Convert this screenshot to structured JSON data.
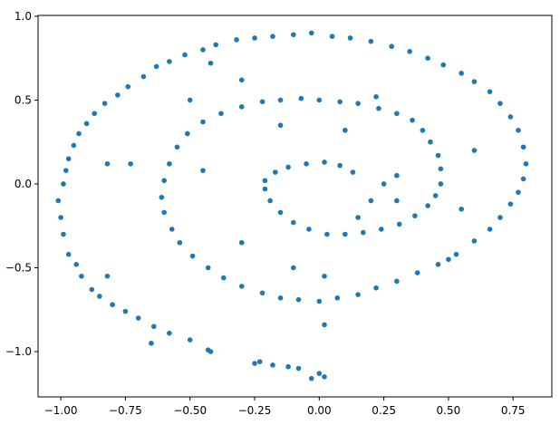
{
  "chart_data": {
    "type": "scatter",
    "x": [
      0.02,
      -0.03,
      0,
      -0.08,
      -0.12,
      -0.18,
      -0.25,
      -0.23,
      -0.43,
      -0.5,
      -0.58,
      -0.64,
      -0.7,
      -0.75,
      -0.8,
      -0.85,
      -0.88,
      -0.92,
      -0.94,
      -0.97,
      -0.99,
      -1.0,
      -1.01,
      -0.99,
      -0.98,
      -0.97,
      -0.95,
      -0.93,
      -0.9,
      -0.87,
      -0.83,
      -0.78,
      -0.74,
      -0.68,
      -0.63,
      -0.58,
      -0.52,
      -0.45,
      -0.4,
      -0.32,
      -0.25,
      -0.18,
      -0.1,
      -0.03,
      0.05,
      0.12,
      0.2,
      0.28,
      0.35,
      0.42,
      0.48,
      0.55,
      0.6,
      0.66,
      0.7,
      0.74,
      0.77,
      0.79,
      0.8,
      0.79,
      0.77,
      0.74,
      0.7,
      0.66,
      0.6,
      0.53,
      0.46,
      0.38,
      0.3,
      0.22,
      0.15,
      0.07,
      0,
      -0.08,
      -0.15,
      -0.22,
      -0.3,
      -0.37,
      -0.43,
      -0.49,
      -0.54,
      -0.57,
      -0.6,
      -0.61,
      -0.6,
      -0.58,
      -0.55,
      -0.51,
      -0.45,
      -0.38,
      -0.3,
      -0.22,
      -0.15,
      -0.07,
      0,
      0.08,
      0.15,
      0.23,
      0.3,
      0.36,
      0.4,
      0.43,
      0.46,
      0.47,
      0.47,
      0.45,
      0.42,
      0.37,
      0.31,
      0.24,
      0.17,
      0.1,
      0.03,
      -0.04,
      -0.1,
      -0.15,
      -0.19,
      -0.21,
      -0.21,
      -0.17,
      -0.12,
      -0.05,
      0.02,
      0.08,
      0.13,
      -0.42,
      0.02,
      -0.65,
      -0.73,
      -0.82,
      -0.3,
      -0.42,
      0.22,
      0.6,
      0.2,
      0.15,
      0.3,
      -0.1,
      -0.3,
      0.55,
      0.5,
      -0.15,
      0.1,
      0.3,
      0.25,
      -0.45,
      -0.5,
      -0.82,
      0.02
    ],
    "values": [
      -1.15,
      -1.16,
      -1.13,
      -1.1,
      -1.09,
      -1.08,
      -1.07,
      -1.06,
      -0.99,
      -0.93,
      -0.89,
      -0.85,
      -0.8,
      -0.76,
      -0.72,
      -0.67,
      -0.63,
      -0.55,
      -0.48,
      -0.42,
      -0.3,
      -0.2,
      -0.1,
      0,
      0.08,
      0.15,
      0.23,
      0.3,
      0.36,
      0.42,
      0.48,
      0.53,
      0.58,
      0.64,
      0.7,
      0.73,
      0.77,
      0.8,
      0.83,
      0.86,
      0.87,
      0.88,
      0.89,
      0.9,
      0.88,
      0.87,
      0.85,
      0.82,
      0.79,
      0.75,
      0.71,
      0.66,
      0.61,
      0.55,
      0.48,
      0.4,
      0.32,
      0.22,
      0.12,
      0.03,
      -0.05,
      -0.12,
      -0.2,
      -0.27,
      -0.34,
      -0.42,
      -0.48,
      -0.53,
      -0.58,
      -0.62,
      -0.66,
      -0.68,
      -0.7,
      -0.69,
      -0.68,
      -0.65,
      -0.61,
      -0.56,
      -0.5,
      -0.43,
      -0.35,
      -0.27,
      -0.17,
      -0.08,
      0.02,
      0.12,
      0.22,
      0.3,
      0.37,
      0.42,
      0.46,
      0.49,
      0.5,
      0.51,
      0.5,
      0.49,
      0.48,
      0.45,
      0.42,
      0.38,
      0.32,
      0.25,
      0.17,
      0.09,
      0,
      -0.07,
      -0.13,
      -0.19,
      -0.24,
      -0.27,
      -0.29,
      -0.3,
      -0.3,
      -0.27,
      -0.23,
      -0.17,
      -0.1,
      -0.03,
      0.02,
      0.07,
      0.1,
      0.12,
      0.13,
      0.11,
      0.07,
      -1.0,
      -0.84,
      -0.95,
      0.12,
      0.12,
      0.62,
      0.72,
      0.52,
      0.2,
      -0.1,
      -0.2,
      -0.1,
      -0.5,
      -0.35,
      -0.15,
      -0.45,
      0.35,
      0.32,
      0.05,
      0,
      0.08,
      0.5,
      -0.55,
      -0.55
    ],
    "color": "#1f77b4",
    "xlim": [
      -1.088,
      0.9
    ],
    "ylim": [
      -1.27,
      1.005
    ],
    "xticks": [
      {
        "value": -1,
        "label": "−1.00"
      },
      {
        "value": -0.75,
        "label": "−0.75"
      },
      {
        "value": -0.5,
        "label": "−0.50"
      },
      {
        "value": -0.25,
        "label": "−0.25"
      },
      {
        "value": 0,
        "label": "0.00"
      },
      {
        "value": 0.25,
        "label": "0.25"
      },
      {
        "value": 0.5,
        "label": "0.50"
      },
      {
        "value": 0.75,
        "label": "0.75"
      }
    ],
    "yticks": [
      {
        "value": -1,
        "label": "−1.0"
      },
      {
        "value": -0.5,
        "label": "−0.5"
      },
      {
        "value": 0,
        "label": "0.0"
      },
      {
        "value": 0.5,
        "label": "0.5"
      },
      {
        "value": 1,
        "label": "1.0"
      }
    ],
    "grid": false
  }
}
